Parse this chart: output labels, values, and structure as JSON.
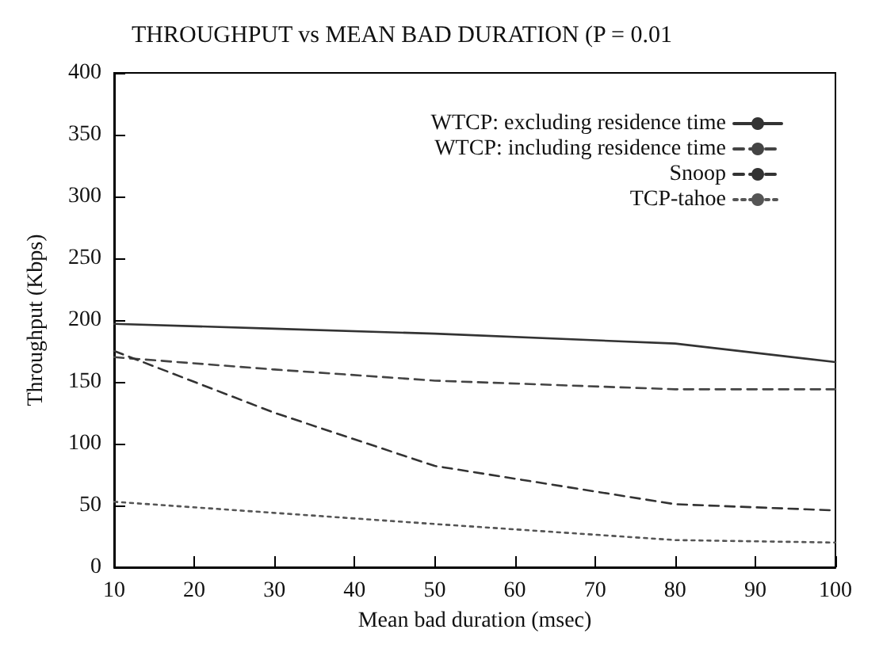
{
  "chart_data": {
    "type": "line",
    "title": "THROUGHPUT vs MEAN BAD DURATION (P = 0.01",
    "xlabel": "Mean bad duration (msec)",
    "ylabel": "Throughput (Kbps)",
    "x": [
      10,
      30,
      50,
      80,
      100
    ],
    "xlim": [
      10,
      100
    ],
    "xticks": [
      10,
      20,
      30,
      40,
      50,
      60,
      70,
      80,
      90,
      100
    ],
    "ylim": [
      0,
      400
    ],
    "yticks": [
      0,
      50,
      100,
      150,
      200,
      250,
      300,
      350,
      400
    ],
    "grid": false,
    "legend": "top right",
    "marker": "none",
    "series": [
      {
        "name": "WTCP: excluding residence time",
        "color": "#333333",
        "line_style": "solid",
        "values": [
          197,
          193,
          189,
          181,
          166
        ]
      },
      {
        "name": "WTCP: including residence time",
        "color": "#444444",
        "line_style": "dashed",
        "values": [
          170,
          160,
          151,
          144,
          144
        ]
      },
      {
        "name": "Snoop",
        "color": "#333333",
        "line_style": "dashed",
        "values": [
          175,
          125,
          82,
          51,
          46
        ]
      },
      {
        "name": "TCP-tahoe",
        "color": "#555555",
        "line_style": "dotted",
        "values": [
          53,
          44,
          35,
          22,
          20
        ]
      }
    ]
  }
}
